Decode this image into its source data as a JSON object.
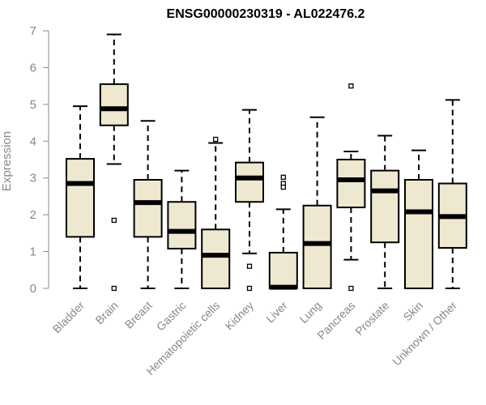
{
  "chart_data": {
    "type": "boxplot",
    "title": "ENSG00000230319 - AL022476.2",
    "xlabel": "",
    "ylabel": "Expression",
    "ylim": [
      0,
      7
    ],
    "yticks": [
      0,
      1,
      2,
      3,
      4,
      5,
      6,
      7
    ],
    "box_color": "#EEE8D0",
    "categories": [
      "Bladder",
      "Brain",
      "Breast",
      "Gastric",
      "Hematopoietic cells",
      "Kidney",
      "Liver",
      "Lung",
      "Pancreas",
      "Prostate",
      "Skin",
      "Unknown / Other"
    ],
    "boxes": [
      {
        "name": "Bladder",
        "min": 0,
        "q1": 1.4,
        "median": 2.85,
        "q3": 3.52,
        "max": 4.95,
        "outliers": []
      },
      {
        "name": "Brain",
        "min": 3.38,
        "q1": 4.43,
        "median": 4.88,
        "q3": 5.55,
        "max": 6.9,
        "outliers": [
          1.85,
          0
        ]
      },
      {
        "name": "Breast",
        "min": 0,
        "q1": 1.4,
        "median": 2.33,
        "q3": 2.95,
        "max": 4.55,
        "outliers": []
      },
      {
        "name": "Gastric",
        "min": 0,
        "q1": 1.08,
        "median": 1.55,
        "q3": 2.35,
        "max": 3.2,
        "outliers": []
      },
      {
        "name": "Hematopoietic cells",
        "min": 0,
        "q1": 0,
        "median": 0.9,
        "q3": 1.6,
        "max": 3.95,
        "outliers": [
          4.05
        ]
      },
      {
        "name": "Kidney",
        "min": 0.95,
        "q1": 2.35,
        "median": 3.0,
        "q3": 3.42,
        "max": 4.85,
        "outliers": [
          0.6,
          0
        ]
      },
      {
        "name": "Liver",
        "min": 0,
        "q1": 0,
        "median": 0.03,
        "q3": 0.97,
        "max": 2.15,
        "outliers": [
          3.02,
          2.85,
          2.75
        ]
      },
      {
        "name": "Lung",
        "min": 0,
        "q1": 0,
        "median": 1.22,
        "q3": 2.25,
        "max": 4.65,
        "outliers": []
      },
      {
        "name": "Pancreas",
        "min": 0.78,
        "q1": 2.2,
        "median": 2.95,
        "q3": 3.5,
        "max": 3.72,
        "outliers": [
          5.5,
          0
        ]
      },
      {
        "name": "Prostate",
        "min": 0,
        "q1": 1.25,
        "median": 2.65,
        "q3": 3.2,
        "max": 4.15,
        "outliers": []
      },
      {
        "name": "Skin",
        "min": 0,
        "q1": 0,
        "median": 2.08,
        "q3": 2.95,
        "max": 3.75,
        "outliers": []
      },
      {
        "name": "Unknown / Other",
        "min": 0,
        "q1": 1.1,
        "median": 1.95,
        "q3": 2.85,
        "max": 5.12,
        "outliers": []
      }
    ]
  }
}
